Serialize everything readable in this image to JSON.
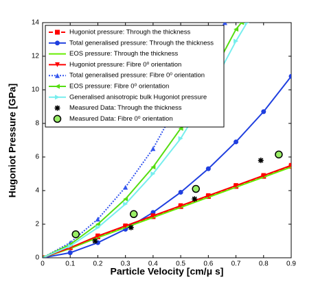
{
  "chart_data": {
    "type": "line",
    "xlabel": "Particle Velocity  [cm/μ s]",
    "ylabel": "Hugoniot Pressure [GPa]",
    "xlim": [
      0,
      0.9
    ],
    "ylim": [
      0,
      14
    ],
    "xticks": [
      0,
      0.1,
      0.2,
      0.3,
      0.4,
      0.5,
      0.6,
      0.7,
      0.8,
      0.9
    ],
    "yticks": [
      0,
      2,
      4,
      6,
      8,
      10,
      12,
      14
    ],
    "legend": "upper left",
    "series": [
      {
        "name": "Hugoniot pressure: Through the thickness",
        "color": "#ff0000",
        "marker": "square",
        "linestyle": "dashed",
        "x": [
          0,
          0.1,
          0.2,
          0.3,
          0.4,
          0.5,
          0.6,
          0.7,
          0.8,
          0.9
        ],
        "values": [
          0,
          0.6,
          1.25,
          1.85,
          2.45,
          3.05,
          3.65,
          4.25,
          4.85,
          5.45
        ]
      },
      {
        "name": "Total generalised pressure: Through the thickness",
        "color": "#1f3fdf",
        "marker": "circle",
        "linestyle": "solid",
        "x": [
          0,
          0.1,
          0.2,
          0.3,
          0.4,
          0.5,
          0.6,
          0.7,
          0.8,
          0.9
        ],
        "values": [
          0,
          0.3,
          0.9,
          1.7,
          2.7,
          3.9,
          5.3,
          6.9,
          8.7,
          10.8
        ]
      },
      {
        "name": "EOS pressure: Through the thickness",
        "color": "#66ee00",
        "marker": "none",
        "linestyle": "solid",
        "x": [
          0,
          0.1,
          0.2,
          0.3,
          0.4,
          0.5,
          0.6,
          0.7,
          0.8,
          0.9
        ],
        "values": [
          0,
          0.55,
          1.2,
          1.8,
          2.4,
          3.0,
          3.6,
          4.2,
          4.8,
          5.4
        ]
      },
      {
        "name": "Hugoniot pressure: Fibre 0⁰ orientation",
        "color": "#ff0000",
        "marker": "triangle-down",
        "linestyle": "solid",
        "x": [
          0,
          0.1,
          0.2,
          0.3,
          0.4,
          0.5,
          0.6,
          0.7,
          0.8,
          0.9
        ],
        "values": [
          0,
          0.6,
          1.3,
          1.9,
          2.5,
          3.1,
          3.7,
          4.3,
          4.9,
          5.5
        ]
      },
      {
        "name": "Total generalised pressure: Fibre 0⁰ orientation",
        "color": "#3355ee",
        "marker": "triangle-up",
        "linestyle": "dotted",
        "x": [
          0,
          0.1,
          0.2,
          0.3,
          0.4,
          0.5,
          0.6,
          0.66
        ],
        "values": [
          0,
          0.9,
          2.3,
          4.2,
          6.5,
          9.5,
          12.4,
          14
        ]
      },
      {
        "name": "EOS pressure: Fibre 0⁰ orientation",
        "color": "#55dd11",
        "marker": "triangle-left",
        "linestyle": "solid",
        "x": [
          0,
          0.1,
          0.2,
          0.3,
          0.4,
          0.5,
          0.6,
          0.7,
          0.72
        ],
        "values": [
          0,
          0.8,
          2.0,
          3.5,
          5.4,
          7.7,
          10.5,
          13.6,
          14
        ]
      },
      {
        "name": "Generalised anisotropic bulk Hugoniot pressure",
        "color": "#77eeee",
        "marker": "triangle-right",
        "linestyle": "solid",
        "x": [
          0,
          0.1,
          0.2,
          0.3,
          0.4,
          0.5,
          0.6,
          0.7,
          0.74
        ],
        "values": [
          0,
          0.7,
          1.8,
          3.2,
          5.0,
          7.1,
          9.8,
          12.9,
          14
        ]
      },
      {
        "name": "Measured Data: Through the thickness",
        "color": "#000000",
        "marker": "star",
        "linestyle": "none",
        "x": [
          0.19,
          0.32,
          0.55,
          0.79
        ],
        "values": [
          1.0,
          1.8,
          3.5,
          5.8
        ]
      },
      {
        "name": "Measured Data: Fibre 0⁰ orientation",
        "color": "#99ee66",
        "marker": "big-circle",
        "linestyle": "none",
        "x": [
          0.12,
          0.33,
          0.555,
          0.855
        ],
        "values": [
          1.4,
          2.6,
          4.1,
          6.15
        ]
      }
    ]
  }
}
